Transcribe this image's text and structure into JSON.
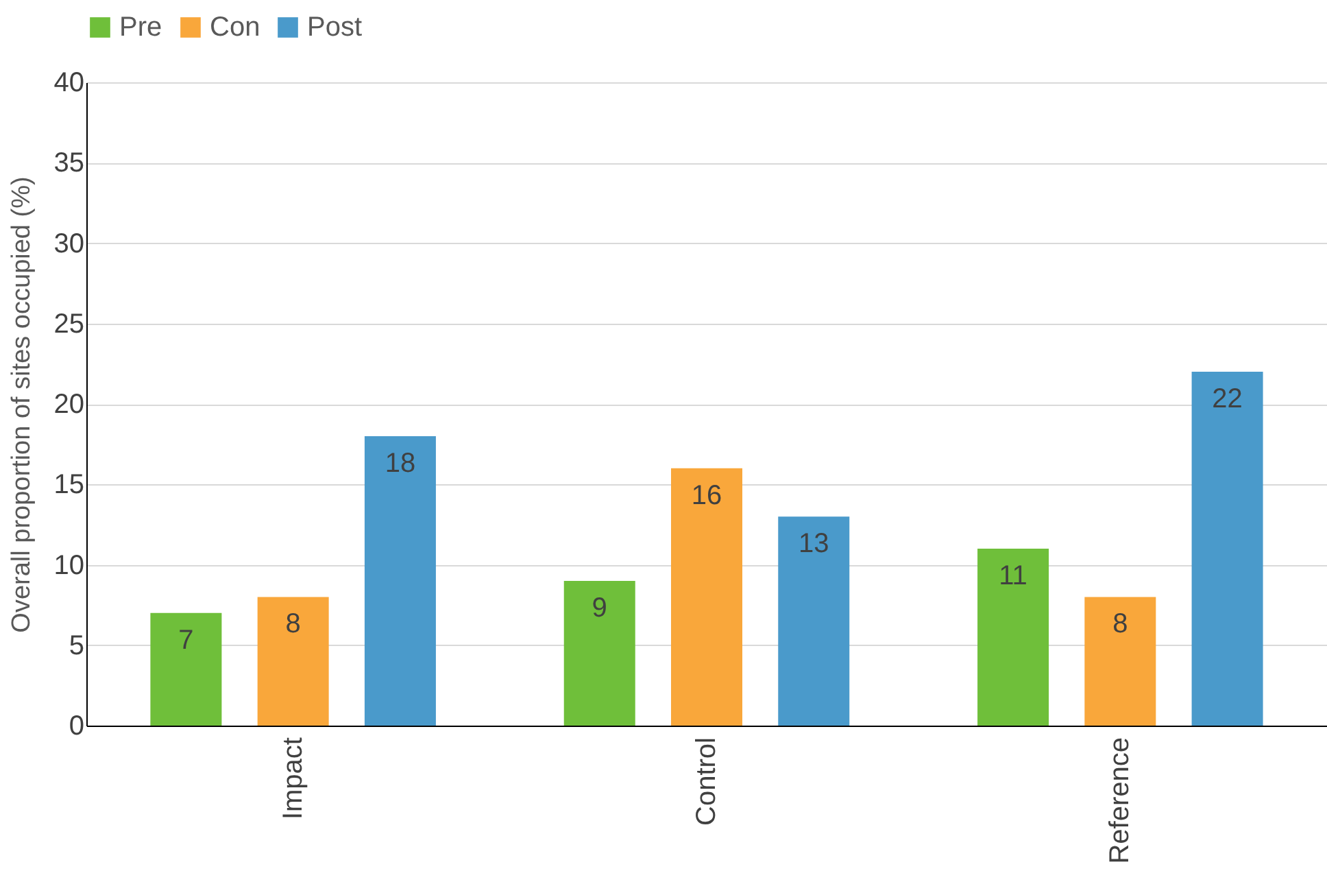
{
  "chart_data": {
    "type": "bar",
    "ylabel": "Overall proportion of sites occupied (%)",
    "categories": [
      "Impact",
      "Control",
      "Reference"
    ],
    "series": [
      {
        "name": "Pre",
        "color": "#6fbf3a",
        "values": [
          7,
          9,
          11
        ]
      },
      {
        "name": "Con",
        "color": "#f9a73b",
        "values": [
          8,
          16,
          8
        ]
      },
      {
        "name": "Post",
        "color": "#4a9acb",
        "values": [
          18,
          13,
          22
        ]
      }
    ],
    "ylim": [
      0,
      40
    ],
    "yticks": [
      0,
      5,
      10,
      15,
      20,
      25,
      30,
      35,
      40
    ],
    "grid": "y",
    "legend": "top",
    "data_labels": true
  }
}
